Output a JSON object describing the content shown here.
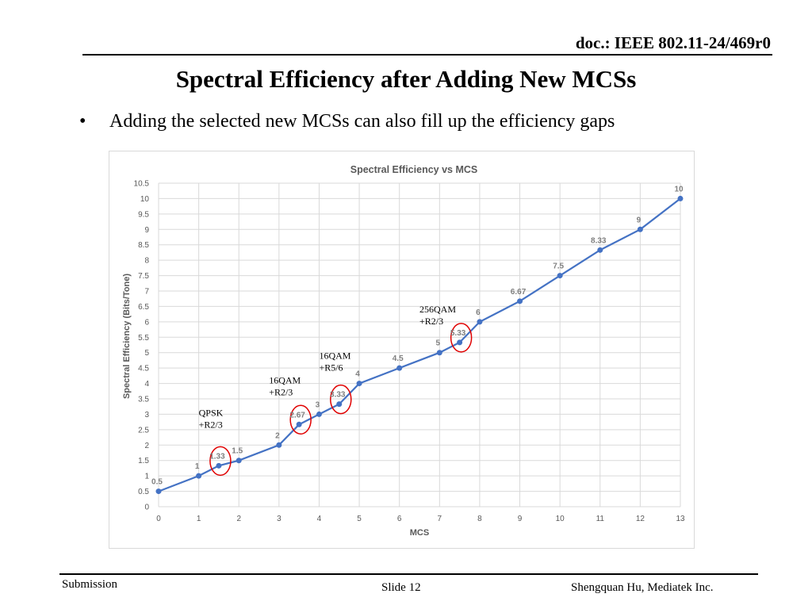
{
  "header": {
    "doc_id": "doc.: IEEE 802.11-24/469r0"
  },
  "slide": {
    "title": "Spectral Efficiency after Adding New MCSs",
    "bullet_marker": "•",
    "bullet": "Adding the selected new MCSs can also fill up the efficiency gaps"
  },
  "footer": {
    "left": "Submission",
    "middle": "Slide 12",
    "right": "Shengquan Hu, Mediatek Inc."
  },
  "chart_data": {
    "type": "line",
    "title": "Spectral Efficiency vs MCS",
    "xlabel": "MCS",
    "ylabel": "Spectral Efficiency (Bits/Tone)",
    "xlim": [
      0,
      13
    ],
    "ylim": [
      0,
      10.5
    ],
    "x_ticks": [
      0,
      1,
      2,
      3,
      4,
      5,
      6,
      7,
      8,
      9,
      10,
      11,
      12,
      13
    ],
    "y_ticks": [
      0,
      0.5,
      1,
      1.5,
      2,
      2.5,
      3,
      3.5,
      4,
      4.5,
      5,
      5.5,
      6,
      6.5,
      7,
      7.5,
      8,
      8.5,
      9,
      9.5,
      10,
      10.5
    ],
    "grid": true,
    "series_color": "#4472c4",
    "highlight_color": "#e00000",
    "points": [
      {
        "x": 0,
        "y": 0.5,
        "label": "0.5"
      },
      {
        "x": 1,
        "y": 1,
        "label": "1"
      },
      {
        "x": 1.5,
        "y": 1.33,
        "label": "1.33",
        "highlight": true
      },
      {
        "x": 2,
        "y": 1.5,
        "label": "1.5"
      },
      {
        "x": 3,
        "y": 2,
        "label": "2"
      },
      {
        "x": 3.5,
        "y": 2.67,
        "label": "2.67",
        "highlight": true
      },
      {
        "x": 4,
        "y": 3,
        "label": "3"
      },
      {
        "x": 4.5,
        "y": 3.33,
        "label": "3.33",
        "highlight": true
      },
      {
        "x": 5,
        "y": 4,
        "label": "4"
      },
      {
        "x": 6,
        "y": 4.5,
        "label": "4.5"
      },
      {
        "x": 7,
        "y": 5,
        "label": "5"
      },
      {
        "x": 7.5,
        "y": 5.33,
        "label": "5.33",
        "highlight": true
      },
      {
        "x": 8,
        "y": 6,
        "label": "6"
      },
      {
        "x": 9,
        "y": 6.67,
        "label": "6.67"
      },
      {
        "x": 10,
        "y": 7.5,
        "label": "7.5"
      },
      {
        "x": 11,
        "y": 8.33,
        "label": "8.33"
      },
      {
        "x": 12,
        "y": 9,
        "label": "9"
      },
      {
        "x": 13,
        "y": 10,
        "label": "10"
      }
    ],
    "annotations": [
      {
        "lines": [
          "QPSK",
          "+R2/3"
        ],
        "x": 1.0,
        "y": 2.95
      },
      {
        "lines": [
          "16QAM",
          "+R2/3"
        ],
        "x": 2.75,
        "y": 4.0
      },
      {
        "lines": [
          "16QAM",
          "+R5/6"
        ],
        "x": 4.0,
        "y": 4.8
      },
      {
        "lines": [
          "256QAM",
          "+R2/3"
        ],
        "x": 6.5,
        "y": 6.3
      }
    ]
  }
}
